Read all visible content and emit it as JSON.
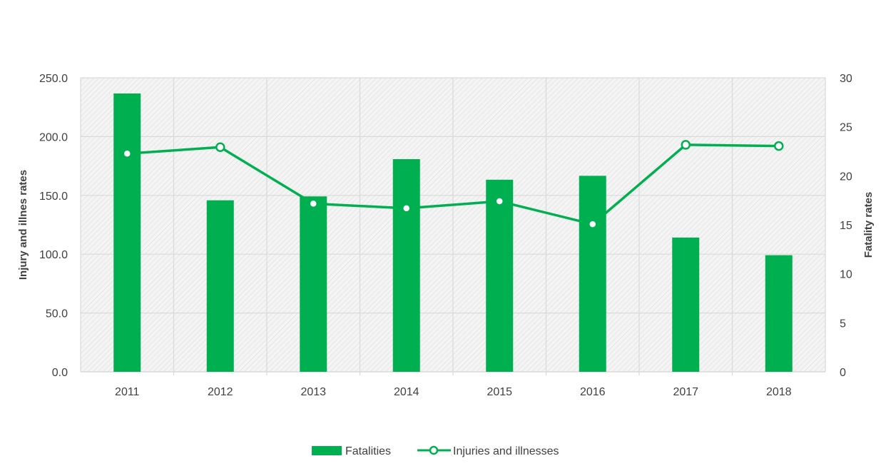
{
  "chart_data": {
    "type": "bar+line",
    "categories": [
      "2011",
      "2012",
      "2013",
      "2014",
      "2015",
      "2016",
      "2017",
      "2018"
    ],
    "series": [
      {
        "name": "Fatalities",
        "type": "bar",
        "axis": "right",
        "values": [
          28.4,
          17.5,
          17.9,
          21.7,
          19.6,
          20.0,
          13.7,
          11.9
        ]
      },
      {
        "name": "Injuries and illnesses",
        "type": "line",
        "axis": "left",
        "values": [
          185.5,
          191.0,
          143.0,
          139.0,
          145.0,
          125.5,
          193.0,
          192.0
        ]
      }
    ],
    "left_axis": {
      "label": "Injury and illnes rates",
      "ylim": [
        0,
        250
      ],
      "ticks": [
        "0.0",
        "50.0",
        "100.0",
        "150.0",
        "200.0",
        "250.0"
      ]
    },
    "right_axis": {
      "label": "Fatality rates",
      "ylim": [
        0,
        30
      ],
      "ticks": [
        "0",
        "5",
        "10",
        "15",
        "20",
        "25",
        "30"
      ]
    },
    "grid": true,
    "legend_position": "bottom-center",
    "colors": {
      "bar": "#00b050",
      "line": "#00b050",
      "marker_fill": "#ffffff",
      "grid": "#d9d9d9",
      "text": "#404040"
    }
  }
}
